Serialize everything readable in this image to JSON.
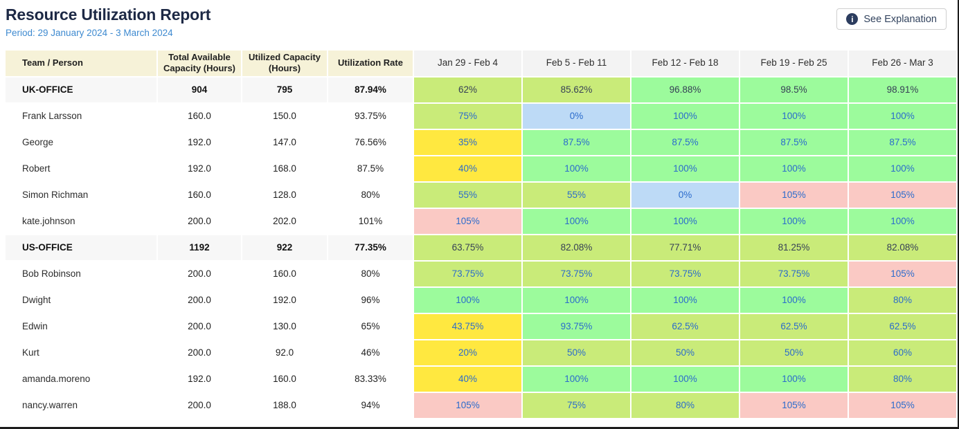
{
  "page": {
    "title": "Resource Utilization Report",
    "period": "Period: 29 January 2024 - 3 March 2024",
    "explanation_button": {
      "label": "See Explanation",
      "icon": "i"
    }
  },
  "colors": {
    "lime": "#c9eb79",
    "green": "#9cfb9c",
    "yellow": "#ffe840",
    "blue": "#bddaf6",
    "red": "#fac9c4",
    "header_cream": "#f6f2d8",
    "header_gray": "#f3f3f3",
    "group_row_bg": "#f7f7f7",
    "link_text": "#2a6bcc",
    "group_week_text": "#353f55"
  },
  "table": {
    "fixed_headers": [
      "Team / Person",
      "Total Available Capacity (Hours)",
      "Utilized Capacity (Hours)",
      "Utilization Rate"
    ],
    "week_headers": [
      "Jan 29 - Feb 4",
      "Feb 5 - Feb 11",
      "Feb 12 - Feb 18",
      "Feb 19 - Feb 25",
      "Feb 26 - Mar 3"
    ],
    "rows": [
      {
        "type": "group",
        "name": "UK-OFFICE",
        "available": "904",
        "utilized": "795",
        "rate": "87.94%",
        "weeks": [
          {
            "value": "62%",
            "color": "lime"
          },
          {
            "value": "85.62%",
            "color": "lime"
          },
          {
            "value": "96.88%",
            "color": "green"
          },
          {
            "value": "98.5%",
            "color": "green"
          },
          {
            "value": "98.91%",
            "color": "green"
          }
        ]
      },
      {
        "type": "person",
        "name": "Frank Larsson",
        "available": "160.0",
        "utilized": "150.0",
        "rate": "93.75%",
        "weeks": [
          {
            "value": "75%",
            "color": "lime"
          },
          {
            "value": "0%",
            "color": "blue"
          },
          {
            "value": "100%",
            "color": "green"
          },
          {
            "value": "100%",
            "color": "green"
          },
          {
            "value": "100%",
            "color": "green"
          }
        ]
      },
      {
        "type": "person",
        "name": "George",
        "available": "192.0",
        "utilized": "147.0",
        "rate": "76.56%",
        "weeks": [
          {
            "value": "35%",
            "color": "yellow"
          },
          {
            "value": "87.5%",
            "color": "green"
          },
          {
            "value": "87.5%",
            "color": "green"
          },
          {
            "value": "87.5%",
            "color": "green"
          },
          {
            "value": "87.5%",
            "color": "green"
          }
        ]
      },
      {
        "type": "person",
        "name": "Robert",
        "available": "192.0",
        "utilized": "168.0",
        "rate": "87.5%",
        "weeks": [
          {
            "value": "40%",
            "color": "yellow"
          },
          {
            "value": "100%",
            "color": "green"
          },
          {
            "value": "100%",
            "color": "green"
          },
          {
            "value": "100%",
            "color": "green"
          },
          {
            "value": "100%",
            "color": "green"
          }
        ]
      },
      {
        "type": "person",
        "name": "Simon Richman",
        "available": "160.0",
        "utilized": "128.0",
        "rate": "80%",
        "weeks": [
          {
            "value": "55%",
            "color": "lime"
          },
          {
            "value": "55%",
            "color": "lime"
          },
          {
            "value": "0%",
            "color": "blue"
          },
          {
            "value": "105%",
            "color": "red"
          },
          {
            "value": "105%",
            "color": "red"
          }
        ]
      },
      {
        "type": "person",
        "name": "kate.johnson",
        "available": "200.0",
        "utilized": "202.0",
        "rate": "101%",
        "weeks": [
          {
            "value": "105%",
            "color": "red"
          },
          {
            "value": "100%",
            "color": "green"
          },
          {
            "value": "100%",
            "color": "green"
          },
          {
            "value": "100%",
            "color": "green"
          },
          {
            "value": "100%",
            "color": "green"
          }
        ]
      },
      {
        "type": "group",
        "name": "US-OFFICE",
        "available": "1192",
        "utilized": "922",
        "rate": "77.35%",
        "weeks": [
          {
            "value": "63.75%",
            "color": "lime"
          },
          {
            "value": "82.08%",
            "color": "lime"
          },
          {
            "value": "77.71%",
            "color": "lime"
          },
          {
            "value": "81.25%",
            "color": "lime"
          },
          {
            "value": "82.08%",
            "color": "lime"
          }
        ]
      },
      {
        "type": "person",
        "name": "Bob Robinson",
        "available": "200.0",
        "utilized": "160.0",
        "rate": "80%",
        "weeks": [
          {
            "value": "73.75%",
            "color": "lime"
          },
          {
            "value": "73.75%",
            "color": "lime"
          },
          {
            "value": "73.75%",
            "color": "lime"
          },
          {
            "value": "73.75%",
            "color": "lime"
          },
          {
            "value": "105%",
            "color": "red"
          }
        ]
      },
      {
        "type": "person",
        "name": "Dwight",
        "available": "200.0",
        "utilized": "192.0",
        "rate": "96%",
        "weeks": [
          {
            "value": "100%",
            "color": "green"
          },
          {
            "value": "100%",
            "color": "green"
          },
          {
            "value": "100%",
            "color": "green"
          },
          {
            "value": "100%",
            "color": "green"
          },
          {
            "value": "80%",
            "color": "lime"
          }
        ]
      },
      {
        "type": "person",
        "name": "Edwin",
        "available": "200.0",
        "utilized": "130.0",
        "rate": "65%",
        "weeks": [
          {
            "value": "43.75%",
            "color": "yellow"
          },
          {
            "value": "93.75%",
            "color": "green"
          },
          {
            "value": "62.5%",
            "color": "lime"
          },
          {
            "value": "62.5%",
            "color": "lime"
          },
          {
            "value": "62.5%",
            "color": "lime"
          }
        ]
      },
      {
        "type": "person",
        "name": "Kurt",
        "available": "200.0",
        "utilized": "92.0",
        "rate": "46%",
        "weeks": [
          {
            "value": "20%",
            "color": "yellow"
          },
          {
            "value": "50%",
            "color": "lime"
          },
          {
            "value": "50%",
            "color": "lime"
          },
          {
            "value": "50%",
            "color": "lime"
          },
          {
            "value": "60%",
            "color": "lime"
          }
        ]
      },
      {
        "type": "person",
        "name": "amanda.moreno",
        "available": "192.0",
        "utilized": "160.0",
        "rate": "83.33%",
        "weeks": [
          {
            "value": "40%",
            "color": "yellow"
          },
          {
            "value": "100%",
            "color": "green"
          },
          {
            "value": "100%",
            "color": "green"
          },
          {
            "value": "100%",
            "color": "green"
          },
          {
            "value": "80%",
            "color": "lime"
          }
        ]
      },
      {
        "type": "person",
        "name": "nancy.warren",
        "available": "200.0",
        "utilized": "188.0",
        "rate": "94%",
        "weeks": [
          {
            "value": "105%",
            "color": "red"
          },
          {
            "value": "75%",
            "color": "lime"
          },
          {
            "value": "80%",
            "color": "lime"
          },
          {
            "value": "105%",
            "color": "red"
          },
          {
            "value": "105%",
            "color": "red"
          }
        ]
      }
    ]
  }
}
